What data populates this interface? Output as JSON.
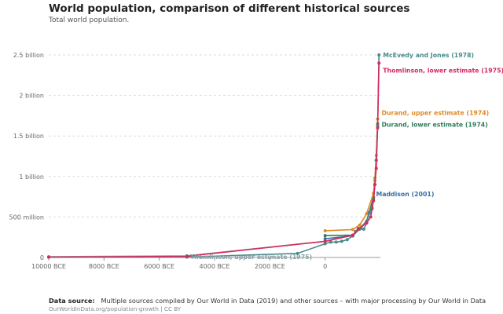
{
  "title": "World population, comparison of different historical sources",
  "subtitle": "Total world population.",
  "footer": {
    "source_label": "Data source:",
    "source_text": "Multiple sources compiled by Our World in Data (2019) and other sources – with major processing by Our World in Data",
    "credit": "OurWorldInData.org/population-growth | CC BY"
  },
  "chart_data": {
    "type": "line",
    "title": "World population, comparison of different historical sources",
    "subtitle": "Total world population.",
    "xlabel": "",
    "ylabel": "",
    "xlim": [
      -10000,
      2000
    ],
    "ylim": [
      0,
      2500000000
    ],
    "x_ticks": [
      -10000,
      -8000,
      -6000,
      -4000,
      -2000,
      0
    ],
    "x_tick_labels": [
      "10000 BCE",
      "8000 BCE",
      "6000 BCE",
      "4000 BCE",
      "2000 BCE",
      "0"
    ],
    "y_ticks": [
      0,
      500000000,
      1000000000,
      1500000000,
      2000000000,
      2500000000
    ],
    "y_tick_labels": [
      "0",
      "500 million",
      "1 billion",
      "1.5 billion",
      "2 billion",
      "2.5 billion"
    ],
    "grid": true,
    "legend": "inline labels at line ends",
    "series": [
      {
        "name": "McEvedy and Jones (1978)",
        "color": "#4a8a8c",
        "points": [
          [
            -10000,
            4000000
          ],
          [
            -5000,
            5000000
          ],
          [
            -1000,
            50000000
          ],
          [
            0,
            170000000
          ],
          [
            200,
            190000000
          ],
          [
            400,
            190000000
          ],
          [
            600,
            200000000
          ],
          [
            800,
            220000000
          ],
          [
            1000,
            265000000
          ],
          [
            1100,
            320000000
          ],
          [
            1200,
            360000000
          ],
          [
            1300,
            360000000
          ],
          [
            1400,
            350000000
          ],
          [
            1500,
            425000000
          ],
          [
            1600,
            545000000
          ],
          [
            1700,
            610000000
          ],
          [
            1750,
            720000000
          ],
          [
            1800,
            900000000
          ],
          [
            1850,
            1200000000
          ],
          [
            1900,
            1625000000
          ],
          [
            1950,
            2500000000
          ]
        ]
      },
      {
        "name": "Thomlinson, lower estimate (1975)",
        "color": "#d62a5e",
        "points": [
          [
            -10000,
            5000000
          ],
          [
            -5000,
            15000000
          ],
          [
            0,
            200000000
          ],
          [
            1000,
            275000000
          ],
          [
            1200,
            350000000
          ],
          [
            1500,
            425000000
          ],
          [
            1650,
            500000000
          ],
          [
            1750,
            700000000
          ],
          [
            1800,
            900000000
          ],
          [
            1850,
            1100000000
          ],
          [
            1900,
            1600000000
          ],
          [
            1950,
            2400000000
          ]
        ]
      },
      {
        "name": "Durand, upper estimate (1974)",
        "color": "#e08a22",
        "points": [
          [
            0,
            330000000
          ],
          [
            1000,
            345000000
          ],
          [
            1250,
            400000000
          ],
          [
            1500,
            540000000
          ],
          [
            1750,
            791000000
          ],
          [
            1800,
            980000000
          ],
          [
            1850,
            1260000000
          ],
          [
            1900,
            1710000000
          ]
        ]
      },
      {
        "name": "Durand, lower estimate (1974)",
        "color": "#2f7d5b",
        "points": [
          [
            0,
            270000000
          ],
          [
            1000,
            275000000
          ],
          [
            1250,
            350000000
          ],
          [
            1500,
            440000000
          ],
          [
            1750,
            735000000
          ],
          [
            1800,
            900000000
          ],
          [
            1850,
            1200000000
          ],
          [
            1900,
            1650000000
          ]
        ]
      },
      {
        "name": "Maddison (2001)",
        "color": "#3a6ea5",
        "points": [
          [
            0,
            231000000
          ],
          [
            1000,
            268000000
          ],
          [
            1500,
            438000000
          ],
          [
            1600,
            556000000
          ],
          [
            1700,
            603000000
          ]
        ]
      },
      {
        "name": "Thomlinson, upper estimate (1975)",
        "color": "#8ca2a8",
        "points": [
          [
            -10000,
            10000000
          ],
          [
            -5000,
            20000000
          ],
          [
            0,
            200000000
          ],
          [
            1000,
            275000000
          ],
          [
            1500,
            450000000
          ],
          [
            1750,
            750000000
          ],
          [
            1800,
            950000000
          ],
          [
            1850,
            1200000000
          ]
        ]
      }
    ],
    "labels": [
      {
        "series": 0,
        "text": "McEvedy and Jones (1978)"
      },
      {
        "series": 1,
        "text": "Thomlinson, lower estimate (1975)"
      },
      {
        "series": 2,
        "text": "Durand, upper estimate (1974)"
      },
      {
        "series": 3,
        "text": "Durand, lower estimate (1974)"
      },
      {
        "series": 4,
        "text": "Maddison (2001)"
      },
      {
        "series": 5,
        "text": "Thomlinson, upper estimate (1975)"
      }
    ]
  }
}
